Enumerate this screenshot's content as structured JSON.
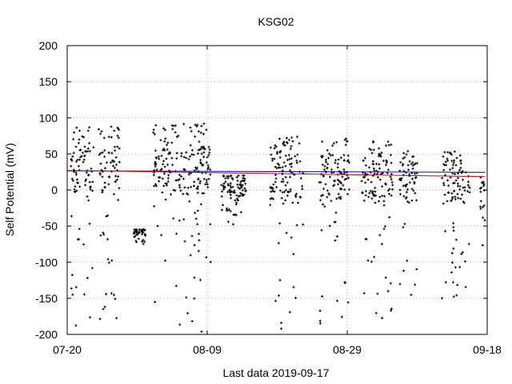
{
  "chart_data": {
    "type": "scatter",
    "title": "KSG02",
    "xlabel": "Last data 2019-09-17",
    "ylabel": "Self Potential (mV)",
    "x_ticks": [
      "07-20",
      "08-09",
      "08-29",
      "09-18"
    ],
    "xlim": [
      "07-20",
      "09-18"
    ],
    "ylim": [
      -200,
      200
    ],
    "y_ticks": [
      -200,
      -150,
      -100,
      -50,
      0,
      50,
      100,
      150,
      200
    ],
    "grid": true,
    "series": [
      {
        "marker": "plus",
        "color": "#000000",
        "clusters": [
          {
            "start": 0.5,
            "end": 3.8,
            "y_min": -190,
            "y_max": 88
          },
          {
            "start": 4.5,
            "end": 7.5,
            "y_min": -190,
            "y_max": 90
          },
          {
            "start": 9.5,
            "end": 11.2,
            "y_min": -75,
            "y_max": -55
          },
          {
            "start": 12.3,
            "end": 20.5,
            "y_min": -198,
            "y_max": 95
          },
          {
            "start": 22.0,
            "end": 25.5,
            "y_min": -50,
            "y_max": 20
          },
          {
            "start": 29.0,
            "end": 33.7,
            "y_min": -198,
            "y_max": 75
          },
          {
            "start": 36.0,
            "end": 40.3,
            "y_min": -185,
            "y_max": 72
          },
          {
            "start": 42.0,
            "end": 46.5,
            "y_min": -185,
            "y_max": 68
          },
          {
            "start": 47.5,
            "end": 50.0,
            "y_min": -150,
            "y_max": 55
          },
          {
            "start": 53.5,
            "end": 57.5,
            "y_min": -150,
            "y_max": 55
          },
          {
            "start": 59.0,
            "end": 59.7,
            "y_min": -130,
            "y_max": 20
          }
        ]
      },
      {
        "color": "#0000cc",
        "type": "line",
        "x": [
          0,
          59.7
        ],
        "values": [
          26.5,
          24.5
        ]
      },
      {
        "color": "#cc0000",
        "type": "line",
        "x": [
          0,
          59.7
        ],
        "values": [
          27,
          18.5
        ]
      }
    ]
  }
}
